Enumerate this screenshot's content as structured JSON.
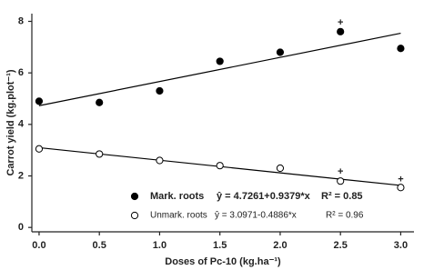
{
  "chart_data": {
    "type": "scatter",
    "xlabel": "Doses of Pc-10 (kg.ha⁻¹)",
    "ylabel": "Carrot yield (kg.plot⁻¹)",
    "x": [
      0,
      0.5,
      1,
      1.5,
      2,
      2.5,
      3
    ],
    "series": [
      {
        "name": "Mark. roots",
        "equation": "ŷ = 4.7261+0.9379*x",
        "r2": "R² = 0.85",
        "marker": "filled",
        "color": "#000000",
        "values": [
          4.9,
          4.85,
          5.3,
          6.45,
          6.8,
          7.6,
          6.95
        ],
        "fit": {
          "intercept": 4.7261,
          "slope": 0.9379
        }
      },
      {
        "name": "Unmark. roots",
        "equation": "ŷ = 3.0971-0.4886*x",
        "r2": "R² = 0.96",
        "marker": "open",
        "color": "#000000",
        "values": [
          3.05,
          2.85,
          2.6,
          2.4,
          2.3,
          1.8,
          1.55
        ],
        "fit": {
          "intercept": 3.0971,
          "slope": -0.4886
        }
      }
    ],
    "annotations": [
      {
        "text": "+",
        "x": 2.5,
        "y": 7.95
      },
      {
        "text": "+",
        "x": 2.5,
        "y": 2.15
      },
      {
        "text": "+",
        "x": 3.0,
        "y": 1.85
      }
    ],
    "xlim": [
      -0.06,
      3.11
    ],
    "ylim": [
      -0.17,
      8.3
    ],
    "xticks": [
      {
        "value": 0,
        "label": "0.0"
      },
      {
        "value": 0.5,
        "label": "0.5"
      },
      {
        "value": 1,
        "label": "1.0"
      },
      {
        "value": 1.5,
        "label": "1.5"
      },
      {
        "value": 2,
        "label": "2.0"
      },
      {
        "value": 2.5,
        "label": "2.5"
      },
      {
        "value": 3,
        "label": "3.0"
      }
    ],
    "yticks": [
      0,
      2,
      4,
      6,
      8
    ]
  }
}
